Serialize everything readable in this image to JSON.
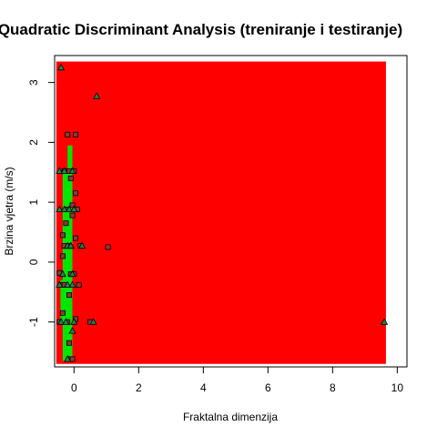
{
  "chart_data": {
    "type": "scatter",
    "title": "Quadratic Discriminant Analysis (treniranje i testiranje)",
    "xlabel": "Fraktalna dimenzija",
    "ylabel": "Brzina vjetra (m/s)",
    "xlim": [
      -0.6,
      10.3
    ],
    "ylim": [
      -1.75,
      3.45
    ],
    "x_ticks": [
      0,
      2,
      4,
      6,
      8,
      10
    ],
    "y_ticks": [
      -1,
      0,
      1,
      2,
      3
    ],
    "grid": false,
    "legend": "none",
    "colors": {
      "background_region": "#ff0000",
      "green_region": "#00e600",
      "marker_fill_square": "#8a3a3a",
      "marker_fill_triangle": "#1a8a4a",
      "marker_stroke": "#000000",
      "axis": "#000000"
    },
    "regions": [
      {
        "class": "red",
        "x": [
          -0.55,
          9.65
        ],
        "y": [
          -1.7,
          3.35
        ]
      },
      {
        "class": "green",
        "polygon": [
          [
            -0.35,
            -1.65
          ],
          [
            -0.05,
            -1.65
          ],
          [
            -0.05,
            1.95
          ],
          [
            -0.2,
            1.95
          ],
          [
            -0.2,
            1.55
          ],
          [
            -0.35,
            1.55
          ],
          [
            -0.35,
            -0.3
          ],
          [
            -0.42,
            -0.3
          ],
          [
            -0.42,
            -1.0
          ],
          [
            -0.35,
            -1.0
          ]
        ]
      }
    ],
    "series": [
      {
        "marker": "square",
        "points": [
          [
            -0.2,
            2.13
          ],
          [
            0.05,
            2.13
          ],
          [
            -0.15,
            1.52
          ],
          [
            0.0,
            1.52
          ],
          [
            -0.3,
            1.52
          ],
          [
            -0.1,
            1.4
          ],
          [
            0.05,
            1.15
          ],
          [
            -0.05,
            0.95
          ],
          [
            -0.2,
            0.88
          ],
          [
            -0.05,
            0.78
          ],
          [
            -0.25,
            0.65
          ],
          [
            -0.35,
            0.45
          ],
          [
            0.05,
            0.4
          ],
          [
            -0.2,
            0.27
          ],
          [
            -0.3,
            0.27
          ],
          [
            0.2,
            0.27
          ],
          [
            1.05,
            0.25
          ],
          [
            -0.35,
            0.1
          ],
          [
            -0.45,
            -0.18
          ],
          [
            -0.1,
            -0.2
          ],
          [
            0.0,
            -0.2
          ],
          [
            -0.25,
            -0.38
          ],
          [
            -0.4,
            -0.38
          ],
          [
            0.15,
            -0.38
          ],
          [
            -0.15,
            -0.55
          ],
          [
            -0.35,
            -0.85
          ],
          [
            0.05,
            -0.95
          ],
          [
            -0.2,
            -1.0
          ],
          [
            0.5,
            -1.0
          ],
          [
            -0.15,
            -1.35
          ],
          [
            -0.1,
            -1.62
          ],
          [
            -0.05,
            -1.62
          ],
          [
            -0.45,
            -1.0
          ],
          [
            -0.3,
            -0.38
          ],
          [
            0.1,
            0.88
          ]
        ]
      },
      {
        "marker": "triangle",
        "points": [
          [
            -0.4,
            3.25
          ],
          [
            0.7,
            2.77
          ],
          [
            -0.45,
            1.52
          ],
          [
            -0.3,
            1.52
          ],
          [
            -0.05,
            1.52
          ],
          [
            -0.45,
            0.88
          ],
          [
            -0.3,
            0.88
          ],
          [
            -0.15,
            0.88
          ],
          [
            0.0,
            0.88
          ],
          [
            -0.2,
            0.27
          ],
          [
            -0.1,
            0.27
          ],
          [
            0.25,
            0.27
          ],
          [
            -0.05,
            -0.2
          ],
          [
            -0.45,
            -0.38
          ],
          [
            -0.2,
            -0.38
          ],
          [
            -0.05,
            -0.38
          ],
          [
            -0.4,
            -1.0
          ],
          [
            -0.25,
            -1.0
          ],
          [
            0.0,
            -1.0
          ],
          [
            0.6,
            -1.0
          ],
          [
            -0.05,
            -1.15
          ],
          [
            -0.2,
            -1.62
          ],
          [
            9.6,
            -1.0
          ],
          [
            -0.35,
            -0.2
          ],
          [
            -0.1,
            0.27
          ]
        ]
      }
    ]
  }
}
